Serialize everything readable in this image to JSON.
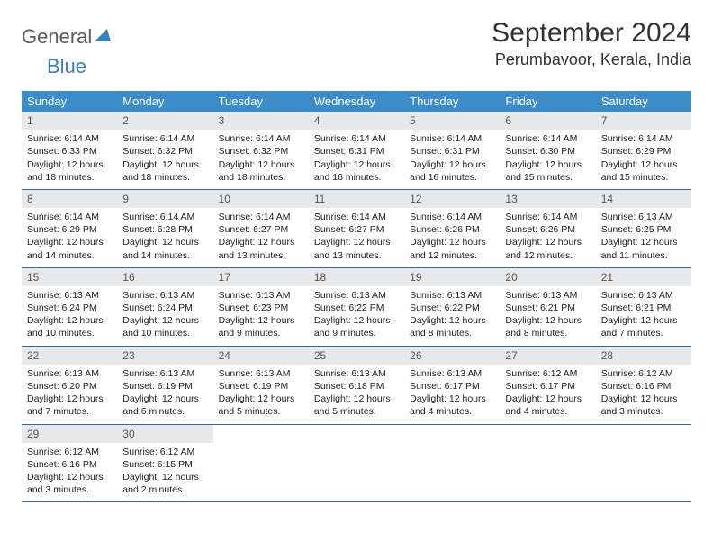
{
  "brand": {
    "part1": "General",
    "part2": "Blue"
  },
  "title": "September 2024",
  "location": "Perumbavoor, Kerala, India",
  "colors": {
    "header_bg": "#3b8cc9",
    "date_bar_bg": "#e7e8e9",
    "week_border": "#2f6a9e",
    "logo_gray": "#5a5a5a",
    "logo_blue": "#3b7fb8"
  },
  "day_names": [
    "Sunday",
    "Monday",
    "Tuesday",
    "Wednesday",
    "Thursday",
    "Friday",
    "Saturday"
  ],
  "weeks": [
    [
      {
        "d": "1",
        "sr": "6:14 AM",
        "ss": "6:33 PM",
        "dl": "12 hours and 18 minutes."
      },
      {
        "d": "2",
        "sr": "6:14 AM",
        "ss": "6:32 PM",
        "dl": "12 hours and 18 minutes."
      },
      {
        "d": "3",
        "sr": "6:14 AM",
        "ss": "6:32 PM",
        "dl": "12 hours and 18 minutes."
      },
      {
        "d": "4",
        "sr": "6:14 AM",
        "ss": "6:31 PM",
        "dl": "12 hours and 16 minutes."
      },
      {
        "d": "5",
        "sr": "6:14 AM",
        "ss": "6:31 PM",
        "dl": "12 hours and 16 minutes."
      },
      {
        "d": "6",
        "sr": "6:14 AM",
        "ss": "6:30 PM",
        "dl": "12 hours and 15 minutes."
      },
      {
        "d": "7",
        "sr": "6:14 AM",
        "ss": "6:29 PM",
        "dl": "12 hours and 15 minutes."
      }
    ],
    [
      {
        "d": "8",
        "sr": "6:14 AM",
        "ss": "6:29 PM",
        "dl": "12 hours and 14 minutes."
      },
      {
        "d": "9",
        "sr": "6:14 AM",
        "ss": "6:28 PM",
        "dl": "12 hours and 14 minutes."
      },
      {
        "d": "10",
        "sr": "6:14 AM",
        "ss": "6:27 PM",
        "dl": "12 hours and 13 minutes."
      },
      {
        "d": "11",
        "sr": "6:14 AM",
        "ss": "6:27 PM",
        "dl": "12 hours and 13 minutes."
      },
      {
        "d": "12",
        "sr": "6:14 AM",
        "ss": "6:26 PM",
        "dl": "12 hours and 12 minutes."
      },
      {
        "d": "13",
        "sr": "6:14 AM",
        "ss": "6:26 PM",
        "dl": "12 hours and 12 minutes."
      },
      {
        "d": "14",
        "sr": "6:13 AM",
        "ss": "6:25 PM",
        "dl": "12 hours and 11 minutes."
      }
    ],
    [
      {
        "d": "15",
        "sr": "6:13 AM",
        "ss": "6:24 PM",
        "dl": "12 hours and 10 minutes."
      },
      {
        "d": "16",
        "sr": "6:13 AM",
        "ss": "6:24 PM",
        "dl": "12 hours and 10 minutes."
      },
      {
        "d": "17",
        "sr": "6:13 AM",
        "ss": "6:23 PM",
        "dl": "12 hours and 9 minutes."
      },
      {
        "d": "18",
        "sr": "6:13 AM",
        "ss": "6:22 PM",
        "dl": "12 hours and 9 minutes."
      },
      {
        "d": "19",
        "sr": "6:13 AM",
        "ss": "6:22 PM",
        "dl": "12 hours and 8 minutes."
      },
      {
        "d": "20",
        "sr": "6:13 AM",
        "ss": "6:21 PM",
        "dl": "12 hours and 8 minutes."
      },
      {
        "d": "21",
        "sr": "6:13 AM",
        "ss": "6:21 PM",
        "dl": "12 hours and 7 minutes."
      }
    ],
    [
      {
        "d": "22",
        "sr": "6:13 AM",
        "ss": "6:20 PM",
        "dl": "12 hours and 7 minutes."
      },
      {
        "d": "23",
        "sr": "6:13 AM",
        "ss": "6:19 PM",
        "dl": "12 hours and 6 minutes."
      },
      {
        "d": "24",
        "sr": "6:13 AM",
        "ss": "6:19 PM",
        "dl": "12 hours and 5 minutes."
      },
      {
        "d": "25",
        "sr": "6:13 AM",
        "ss": "6:18 PM",
        "dl": "12 hours and 5 minutes."
      },
      {
        "d": "26",
        "sr": "6:13 AM",
        "ss": "6:17 PM",
        "dl": "12 hours and 4 minutes."
      },
      {
        "d": "27",
        "sr": "6:12 AM",
        "ss": "6:17 PM",
        "dl": "12 hours and 4 minutes."
      },
      {
        "d": "28",
        "sr": "6:12 AM",
        "ss": "6:16 PM",
        "dl": "12 hours and 3 minutes."
      }
    ],
    [
      {
        "d": "29",
        "sr": "6:12 AM",
        "ss": "6:16 PM",
        "dl": "12 hours and 3 minutes."
      },
      {
        "d": "30",
        "sr": "6:12 AM",
        "ss": "6:15 PM",
        "dl": "12 hours and 2 minutes."
      },
      null,
      null,
      null,
      null,
      null
    ]
  ],
  "labels": {
    "sunrise": "Sunrise: ",
    "sunset": "Sunset: ",
    "daylight": "Daylight: "
  }
}
